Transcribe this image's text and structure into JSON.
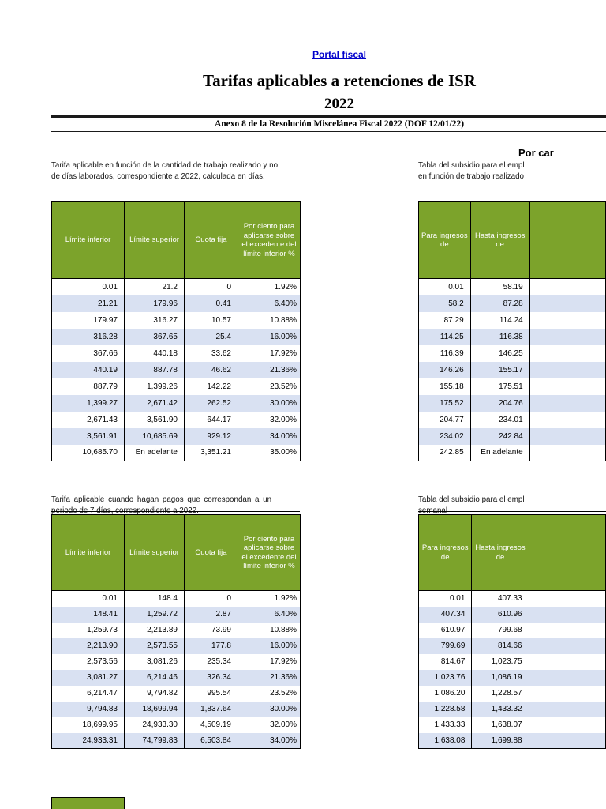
{
  "colors": {
    "header-green": "#7CA32B",
    "row-alt": "#D9E1F2",
    "link-blue": "#0000CC",
    "rule": "#1a1a1a"
  },
  "header": {
    "link": "Portal fiscal",
    "title": "Tarifas aplicables a retenciones de ISR",
    "year": "2022",
    "subtitle": "Anexo 8 de la Resolución Miscelánea Fiscal 2022 (DOF 12/01/22)",
    "right_heading": "Por car"
  },
  "section1": {
    "left_intro_line1": "Tarifa aplicable en función de la cantidad de trabajo realizado y no",
    "left_intro_line2": "de días laborados, correspondiente a 2022, calculada en días.",
    "right_intro_line1": "Tabla del subsidio para el empl",
    "right_intro_line2": "en función de trabajo realizado",
    "tax_table": {
      "headers": [
        "Límite inferior",
        "Límite superior",
        "Cuota fija",
        "Por ciento para aplicarse sobre el excedente del límite inferior %"
      ],
      "rows": [
        [
          "0.01",
          "21.2",
          "0",
          "1.92%"
        ],
        [
          "21.21",
          "179.96",
          "0.41",
          "6.40%"
        ],
        [
          "179.97",
          "316.27",
          "10.57",
          "10.88%"
        ],
        [
          "316.28",
          "367.65",
          "25.4",
          "16.00%"
        ],
        [
          "367.66",
          "440.18",
          "33.62",
          "17.92%"
        ],
        [
          "440.19",
          "887.78",
          "46.62",
          "21.36%"
        ],
        [
          "887.79",
          "1,399.26",
          "142.22",
          "23.52%"
        ],
        [
          "1,399.27",
          "2,671.42",
          "262.52",
          "30.00%"
        ],
        [
          "2,671.43",
          "3,561.90",
          "644.17",
          "32.00%"
        ],
        [
          "3,561.91",
          "10,685.69",
          "929.12",
          "34.00%"
        ],
        [
          "10,685.70",
          "En adelante",
          "3,351.21",
          "35.00%"
        ]
      ]
    },
    "subsidy_table": {
      "headers": [
        "Para ingresos de",
        "Hasta ingresos de",
        ""
      ],
      "rows": [
        [
          "0.01",
          "58.19"
        ],
        [
          "58.2",
          "87.28"
        ],
        [
          "87.29",
          "114.24"
        ],
        [
          "114.25",
          "116.38"
        ],
        [
          "116.39",
          "146.25"
        ],
        [
          "146.26",
          "155.17"
        ],
        [
          "155.18",
          "175.51"
        ],
        [
          "175.52",
          "204.76"
        ],
        [
          "204.77",
          "234.01"
        ],
        [
          "234.02",
          "242.84"
        ],
        [
          "242.85",
          "En adelante"
        ]
      ]
    }
  },
  "section2": {
    "left_intro_line1": "Tarifa aplicable cuando hagan pagos que correspondan a un",
    "left_intro_line2": "periodo de 7 días, correspondiente a 2022.",
    "right_intro_line1": "Tabla del subsidio para el empl",
    "right_intro_line2": "semanal",
    "tax_table": {
      "headers": [
        "Límite inferior",
        "Límite superior",
        "Cuota fija",
        "Por ciento para aplicarse sobre el excedente del límite inferior %"
      ],
      "rows": [
        [
          "0.01",
          "148.4",
          "0",
          "1.92%"
        ],
        [
          "148.41",
          "1,259.72",
          "2.87",
          "6.40%"
        ],
        [
          "1,259.73",
          "2,213.89",
          "73.99",
          "10.88%"
        ],
        [
          "2,213.90",
          "2,573.55",
          "177.8",
          "16.00%"
        ],
        [
          "2,573.56",
          "3,081.26",
          "235.34",
          "17.92%"
        ],
        [
          "3,081.27",
          "6,214.46",
          "326.34",
          "21.36%"
        ],
        [
          "6,214.47",
          "9,794.82",
          "995.54",
          "23.52%"
        ],
        [
          "9,794.83",
          "18,699.94",
          "1,837.64",
          "30.00%"
        ],
        [
          "18,699.95",
          "24,933.30",
          "4,509.19",
          "32.00%"
        ],
        [
          "24,933.31",
          "74,799.83",
          "6,503.84",
          "34.00%"
        ]
      ]
    },
    "subsidy_table": {
      "headers": [
        "Para ingresos de",
        "Hasta ingresos de",
        ""
      ],
      "rows": [
        [
          "0.01",
          "407.33"
        ],
        [
          "407.34",
          "610.96"
        ],
        [
          "610.97",
          "799.68"
        ],
        [
          "799.69",
          "814.66"
        ],
        [
          "814.67",
          "1,023.75"
        ],
        [
          "1,023.76",
          "1,086.19"
        ],
        [
          "1,086.20",
          "1,228.57"
        ],
        [
          "1,228.58",
          "1,433.32"
        ],
        [
          "1,433.33",
          "1,638.07"
        ],
        [
          "1,638.08",
          "1,699.88"
        ]
      ]
    }
  }
}
